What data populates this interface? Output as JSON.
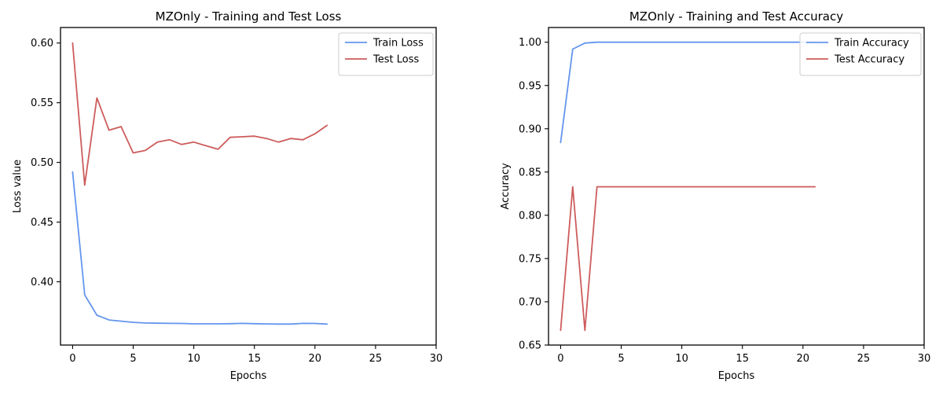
{
  "chart_data": [
    {
      "type": "line",
      "title": "MZOnly - Training and Test Loss",
      "xlabel": "Epochs",
      "ylabel": "Loss value",
      "xlim": [
        -1,
        30
      ],
      "ylim": [
        0.347,
        0.613
      ],
      "xticks": [
        0,
        5,
        10,
        15,
        20,
        25,
        30
      ],
      "xtick_labels": [
        "0",
        "5",
        "10",
        "15",
        "20",
        "25",
        "30"
      ],
      "yticks": [
        0.4,
        0.45,
        0.5,
        0.55,
        0.6
      ],
      "ytick_labels": [
        "0.40",
        "0.45",
        "0.50",
        "0.55",
        "0.60"
      ],
      "grid": false,
      "legend_position": "top-right",
      "x": [
        0,
        1,
        2,
        3,
        4,
        5,
        6,
        7,
        8,
        9,
        10,
        11,
        12,
        13,
        14,
        15,
        16,
        17,
        18,
        19,
        20,
        21
      ],
      "series": [
        {
          "name": "Train Loss",
          "color": "#6495ED",
          "values": [
            0.492,
            0.389,
            0.372,
            0.368,
            0.367,
            0.366,
            0.3655,
            0.3653,
            0.3652,
            0.3651,
            0.3648,
            0.3648,
            0.3648,
            0.3649,
            0.3652,
            0.3649,
            0.3647,
            0.3646,
            0.3646,
            0.3652,
            0.3651,
            0.3646
          ]
        },
        {
          "name": "Test Loss",
          "color": "#CD5C5C",
          "values": [
            0.6,
            0.481,
            0.554,
            0.527,
            0.53,
            0.508,
            0.51,
            0.517,
            0.519,
            0.515,
            0.517,
            0.514,
            0.511,
            0.521,
            0.5215,
            0.522,
            0.52,
            0.517,
            0.52,
            0.519,
            0.524,
            0.531
          ]
        }
      ]
    },
    {
      "type": "line",
      "title": "MZOnly - Training and Test Accuracy",
      "xlabel": "Epochs",
      "ylabel": "Accuracy",
      "xlim": [
        -1,
        30
      ],
      "ylim": [
        0.65,
        1.017
      ],
      "xticks": [
        0,
        5,
        10,
        15,
        20,
        25,
        30
      ],
      "xtick_labels": [
        "0",
        "5",
        "10",
        "15",
        "20",
        "25",
        "30"
      ],
      "yticks": [
        0.65,
        0.7,
        0.75,
        0.8,
        0.85,
        0.9,
        0.95,
        1.0
      ],
      "ytick_labels": [
        "0.65",
        "0.70",
        "0.75",
        "0.80",
        "0.85",
        "0.90",
        "0.95",
        "1.00"
      ],
      "grid": false,
      "legend_position": "top-right",
      "x": [
        0,
        1,
        2,
        3,
        4,
        5,
        6,
        7,
        8,
        9,
        10,
        11,
        12,
        13,
        14,
        15,
        16,
        17,
        18,
        19,
        20,
        21
      ],
      "series": [
        {
          "name": "Train Accuracy",
          "color": "#6495ED",
          "values": [
            0.884,
            0.992,
            0.999,
            1.0,
            1.0,
            1.0,
            1.0,
            1.0,
            1.0,
            1.0,
            1.0,
            1.0,
            1.0,
            1.0,
            1.0,
            1.0,
            1.0,
            1.0,
            1.0,
            1.0,
            1.0,
            1.0
          ]
        },
        {
          "name": "Test Accuracy",
          "color": "#CD5C5C",
          "values": [
            0.667,
            0.833,
            0.667,
            0.833,
            0.833,
            0.833,
            0.833,
            0.833,
            0.833,
            0.833,
            0.833,
            0.833,
            0.833,
            0.833,
            0.833,
            0.833,
            0.833,
            0.833,
            0.833,
            0.833,
            0.833,
            0.833
          ]
        }
      ]
    }
  ]
}
